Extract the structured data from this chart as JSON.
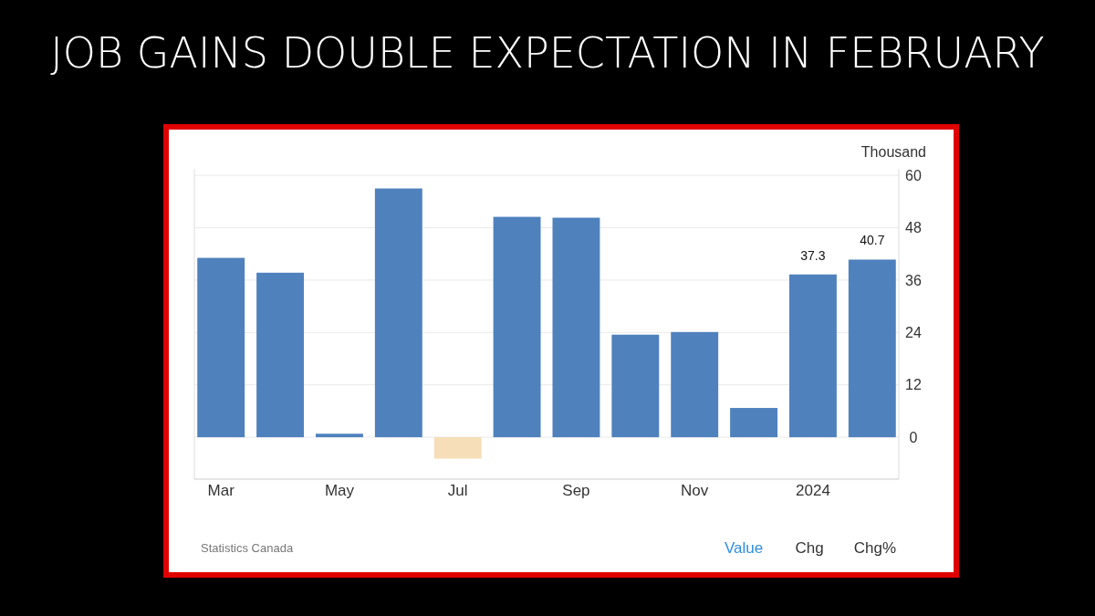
{
  "chart_data": {
    "type": "bar",
    "title": "JOB GAINS DOUBLE EXPECTATION IN FEBRUARY",
    "ylabel": "Thousand",
    "categories": [
      "Mar",
      null,
      "May",
      null,
      "Jul",
      null,
      "Sep",
      null,
      "Nov",
      null,
      "2024",
      null
    ],
    "values": [
      41.1,
      37.7,
      0.8,
      57.0,
      -4.9,
      50.5,
      50.3,
      23.5,
      24.1,
      6.7,
      37.3,
      40.7
    ],
    "colors": [
      "#4f81bd",
      "#4f81bd",
      "#4f81bd",
      "#4f81bd",
      "#f5deb8",
      "#4f81bd",
      "#4f81bd",
      "#4f81bd",
      "#4f81bd",
      "#4f81bd",
      "#4f81bd",
      "#4f81bd"
    ],
    "value_labels": [
      null,
      null,
      null,
      null,
      null,
      null,
      null,
      null,
      null,
      null,
      "37.3",
      "40.7"
    ],
    "ylim": [
      -9.6,
      61.5
    ],
    "yticks": [
      0,
      12,
      24,
      36,
      48,
      60
    ],
    "grid": "y",
    "annotations": [
      "Statistics Canada",
      "Value",
      "Chg",
      "Chg%"
    ]
  }
}
